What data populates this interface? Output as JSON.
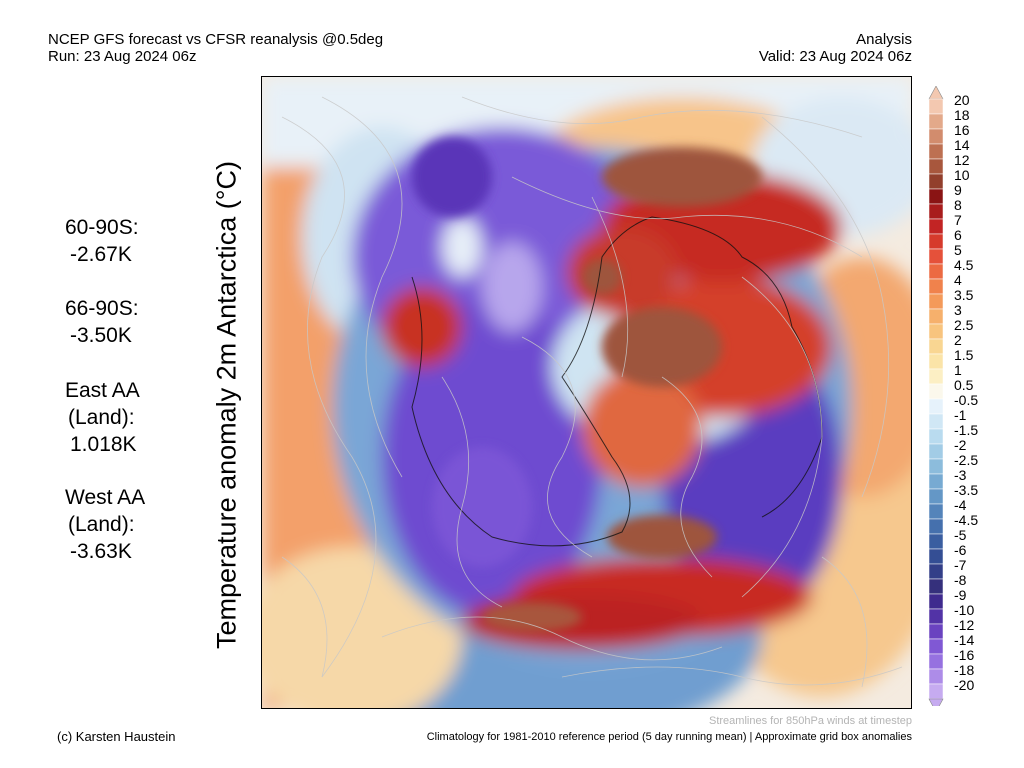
{
  "header": {
    "line1_left": "NCEP GFS forecast vs CFSR reanalysis @0.5deg",
    "line2_left": "Run: 23 Aug 2024 06z",
    "line1_right": "Analysis",
    "line2_right": "Valid: 23 Aug 2024 06z"
  },
  "y_axis_label": "Temperature anomaly 2m Antarctica (°C)",
  "stats": [
    {
      "label": "60-90S:",
      "value": "-2.67K"
    },
    {
      "label": "66-90S:",
      "value": "-3.50K"
    },
    {
      "label_lines": [
        "East AA",
        "(Land):"
      ],
      "value": "1.018K"
    },
    {
      "label_lines": [
        "West AA",
        "(Land):"
      ],
      "value": "-3.63K"
    }
  ],
  "colorbar": {
    "labels": [
      "20",
      "18",
      "16",
      "14",
      "12",
      "10",
      "9",
      "8",
      "7",
      "6",
      "5",
      "4.5",
      "4",
      "3.5",
      "3",
      "2.5",
      "2",
      "1.5",
      "1",
      "0.5",
      "-0.5",
      "-1",
      "-1.5",
      "-2",
      "-2.5",
      "-3",
      "-3.5",
      "-4",
      "-4.5",
      "-5",
      "-6",
      "-7",
      "-8",
      "-9",
      "-10",
      "-12",
      "-14",
      "-16",
      "-18",
      "-20"
    ],
    "colors": [
      "#f3c8b0",
      "#e3a98a",
      "#d28c6d",
      "#bd7052",
      "#a8573d",
      "#923f2c",
      "#8a1414",
      "#a81c1c",
      "#c22424",
      "#d63a2c",
      "#e5513a",
      "#ec6a42",
      "#f0824c",
      "#f49a5a",
      "#f6b06c",
      "#f8c47e",
      "#f9d692",
      "#fbe4a8",
      "#fcefc4",
      "#fbf8ec",
      "#e6f2fb",
      "#d0e7f5",
      "#b9dbef",
      "#a2cce6",
      "#8cbcdc",
      "#77aad2",
      "#6497c6",
      "#5484ba",
      "#4570ad",
      "#3a5ea0",
      "#344e94",
      "#333f88",
      "#35307c",
      "#3f2a8e",
      "#5233a6",
      "#6a43c0",
      "#8058d4",
      "#9671e0",
      "#ad8ce8",
      "#c6abf0"
    ]
  },
  "footer": {
    "credit": "(c) Karsten Haustein",
    "note": "Streamlines for 850hPa winds at timestep",
    "climatology": "Climatology for 1981-2010 reference period (5 day running mean) | Approximate grid box anomalies"
  }
}
